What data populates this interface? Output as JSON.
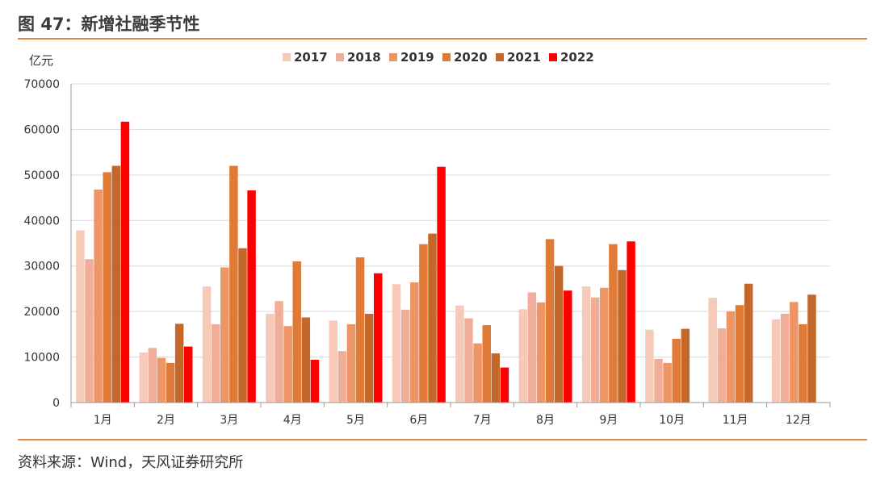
{
  "header": {
    "title": "图 47：新增社融季节性"
  },
  "footer": {
    "source": "资料来源：Wind，天风证券研究所"
  },
  "colors": {
    "accent_rule": "#e8873d",
    "grid": "#d9d9d9",
    "axis": "#999999",
    "text": "#333333"
  },
  "chart_data": {
    "type": "bar",
    "title": "",
    "xlabel": "",
    "ylabel": "亿元",
    "ylim": [
      0,
      70000
    ],
    "yticks": [
      "0",
      "10000",
      "20000",
      "30000",
      "40000",
      "50000",
      "60000",
      "70000"
    ],
    "grid": true,
    "legend_position": "top",
    "categories": [
      "1月",
      "2月",
      "3月",
      "4月",
      "5月",
      "6月",
      "7月",
      "8月",
      "9月",
      "10月",
      "11月",
      "12月"
    ],
    "series": [
      {
        "name": "2017",
        "color": "#f6c9b8",
        "values": [
          37800,
          11000,
          25500,
          19500,
          18000,
          26000,
          21300,
          20500,
          25500,
          16000,
          23000,
          18300
        ]
      },
      {
        "name": "2018",
        "color": "#f0ae99",
        "values": [
          31500,
          12000,
          17200,
          22300,
          11300,
          20400,
          18500,
          24200,
          23100,
          9600,
          16300,
          19500
        ]
      },
      {
        "name": "2019",
        "color": "#ee9565",
        "values": [
          46800,
          9800,
          29700,
          16800,
          17200,
          26400,
          13000,
          22000,
          25200,
          8700,
          20000,
          22100
        ]
      },
      {
        "name": "2020",
        "color": "#e07b37",
        "values": [
          50600,
          8700,
          52000,
          31000,
          31900,
          34800,
          17000,
          35900,
          34800,
          14000,
          21400,
          17200
        ]
      },
      {
        "name": "2021",
        "color": "#c4672a",
        "values": [
          52000,
          17300,
          33900,
          18700,
          19500,
          37100,
          10800,
          30000,
          29100,
          16200,
          26100,
          23700
        ]
      },
      {
        "name": "2022",
        "color": "#ff0000",
        "values": [
          61700,
          12300,
          46600,
          9400,
          28400,
          51800,
          7700,
          24600,
          35400,
          null,
          null,
          null
        ]
      }
    ]
  }
}
